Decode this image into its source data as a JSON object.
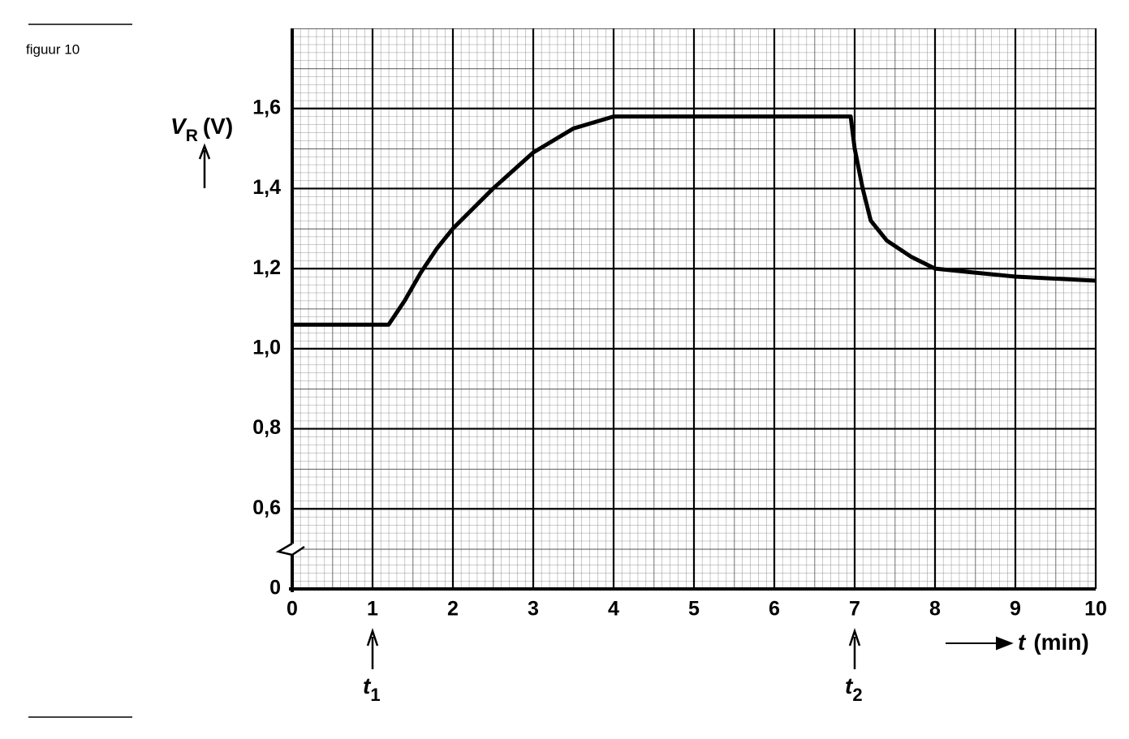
{
  "figure_label": "figuur 10",
  "chart_data": {
    "type": "line",
    "y_label": {
      "symbol": "V",
      "subscript": "R",
      "unit": "(V)"
    },
    "x_label": {
      "symbol": "t",
      "unit": "(min)"
    },
    "x": [
      0,
      0.5,
      1,
      1.2,
      1.4,
      1.6,
      1.8,
      2,
      2.5,
      3,
      3.5,
      4,
      5,
      6,
      6.95,
      7,
      7.1,
      7.2,
      7.4,
      7.7,
      8,
      8.5,
      9,
      9.5,
      10
    ],
    "series": [
      {
        "color": "#000000",
        "values": [
          1.06,
          1.06,
          1.06,
          1.06,
          1.12,
          1.19,
          1.25,
          1.3,
          1.4,
          1.49,
          1.55,
          1.58,
          1.58,
          1.58,
          1.58,
          1.5,
          1.4,
          1.32,
          1.27,
          1.23,
          1.2,
          1.19,
          1.18,
          1.175,
          1.17
        ]
      }
    ],
    "xlim": [
      0,
      10
    ],
    "xticks": [
      0,
      1,
      2,
      3,
      4,
      5,
      6,
      7,
      8,
      9,
      10
    ],
    "ylim": [
      0,
      1.8
    ],
    "y_break": [
      0,
      0.4
    ],
    "yticks": [
      0,
      {
        "value": 0.6,
        "label": "0,6"
      },
      {
        "value": 0.8,
        "label": "0,8"
      },
      {
        "value": 1.0,
        "label": "1,0"
      },
      {
        "value": 1.2,
        "label": "1,2"
      },
      {
        "value": 1.4,
        "label": "1,4"
      },
      {
        "value": 1.6,
        "label": "1,6"
      }
    ],
    "grid": true,
    "annotations": [
      {
        "symbol": "t",
        "subscript": "1",
        "x": 1
      },
      {
        "symbol": "t",
        "subscript": "2",
        "x": 7
      }
    ]
  }
}
